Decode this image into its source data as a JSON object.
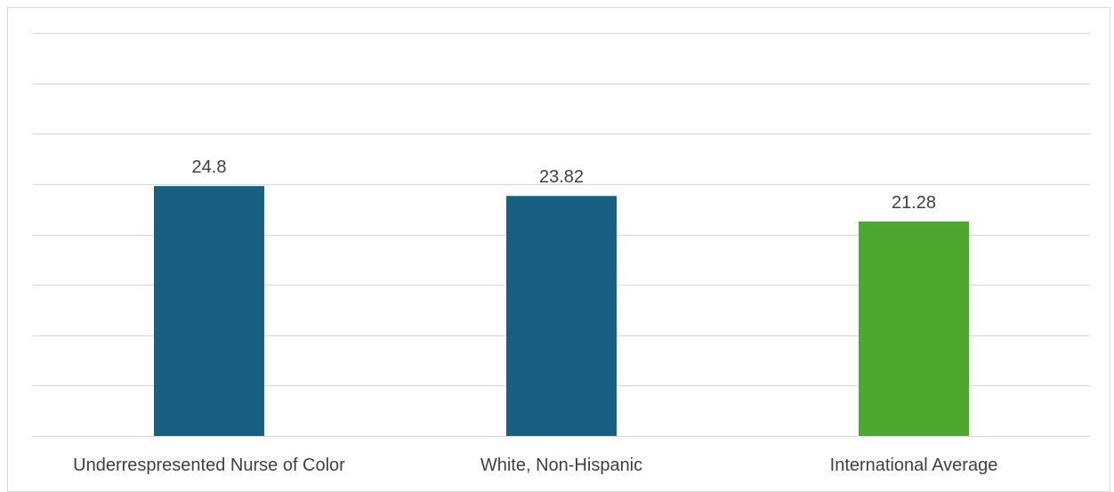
{
  "chart_data": {
    "type": "bar",
    "title": "",
    "xlabel": "",
    "ylabel": "",
    "categories": [
      "Underrespresented Nurse of Color",
      "White, Non-Hispanic",
      "International Average"
    ],
    "values": [
      24.8,
      23.82,
      21.28
    ],
    "colors": [
      "#185f82",
      "#185f82",
      "#4ea72e"
    ],
    "ylim": [
      0,
      40
    ],
    "grid": true,
    "gridline_step": 5,
    "data_labels": true,
    "legend": "none"
  },
  "style": {
    "gridline_color": "#d9d9d9",
    "text_color": "#404040",
    "background": "#ffffff"
  }
}
